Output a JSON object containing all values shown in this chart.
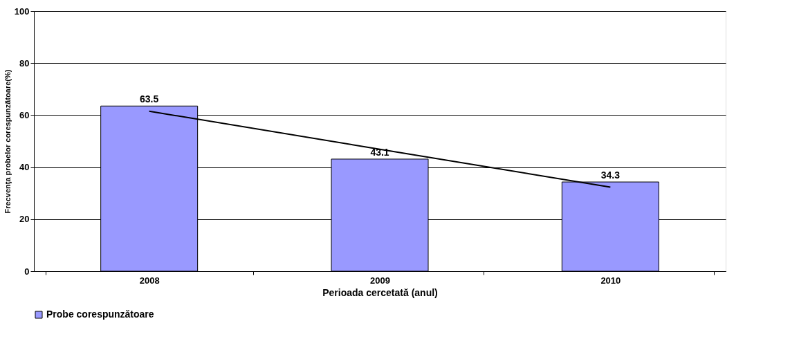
{
  "chart_data": {
    "type": "bar",
    "xlabel": "Perioada cercetată (anul)",
    "ylabel": "Frecvenţa probelor corespunzătoare(%)",
    "categories": [
      "2008",
      "2009",
      "2010"
    ],
    "series": [
      {
        "name": "Probe corespunzătoare",
        "color": "#9999ff",
        "values": [
          63.5,
          43.1,
          34.3
        ],
        "value_labels": [
          "63.5",
          "43.1",
          "34.3"
        ]
      },
      {
        "type": "line",
        "color": "#000000",
        "values": [
          61.5,
          46.9,
          32.3
        ]
      }
    ],
    "ylim": [
      0,
      100
    ],
    "yticks": [
      0,
      20,
      40,
      60,
      80,
      100
    ],
    "grid": "y",
    "legend": "bottom",
    "marker": "none"
  }
}
